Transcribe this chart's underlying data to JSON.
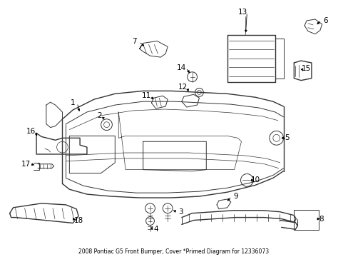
{
  "title": "2008 Pontiac G5 Front Bumper, Cover *Primed Diagram for 12336073",
  "background_color": "#ffffff",
  "fig_width": 4.89,
  "fig_height": 3.6,
  "dpi": 100,
  "label_fontsize": 7.5,
  "label_color": "#000000",
  "line_color": "#333333",
  "arrow_color": "#000000"
}
